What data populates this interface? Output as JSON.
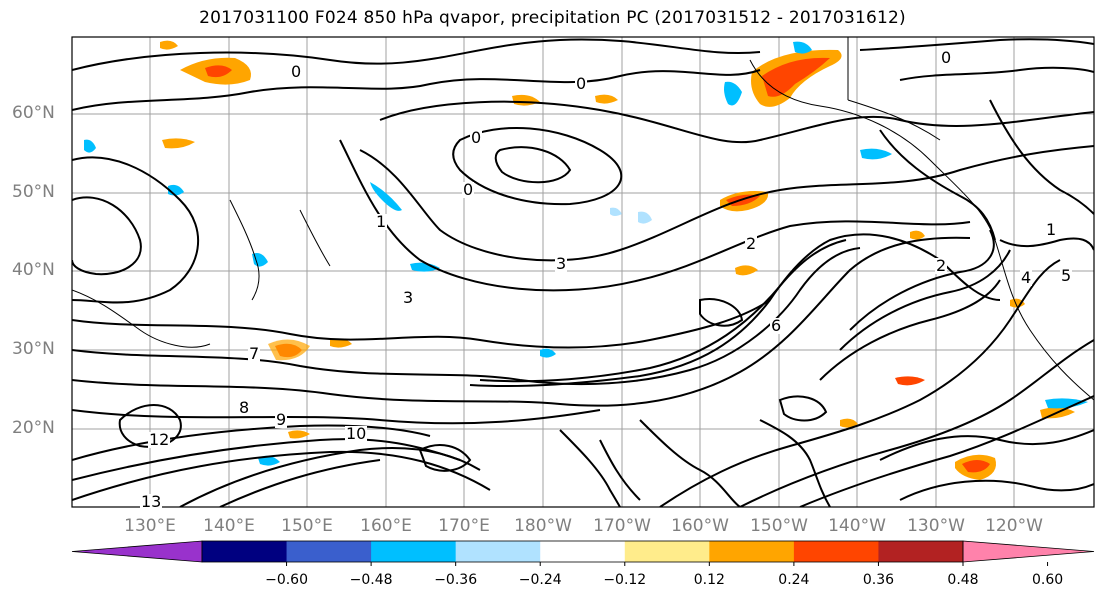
{
  "title": "2017031100 F024 850 hPa qvapor, precipitation PC (2017031512 - 2017031612)",
  "map": {
    "lat_labels": [
      "60°N",
      "50°N",
      "40°N",
      "30°N",
      "20°N"
    ],
    "lon_labels": [
      "130°E",
      "140°E",
      "150°E",
      "160°E",
      "170°E",
      "180°W",
      "170°W",
      "160°W",
      "150°W",
      "140°W",
      "130°W",
      "120°W"
    ],
    "gridline_color": "#a0a0a0",
    "contour_color": "#000000",
    "contour_labels": [
      "0",
      "0",
      "0",
      "0",
      "0",
      "1",
      "1",
      "2",
      "2",
      "3",
      "3",
      "4",
      "5",
      "6",
      "7",
      "8",
      "9",
      "10",
      "12",
      "13"
    ]
  },
  "colorbar": {
    "ticks": [
      "−0.60",
      "−0.48",
      "−0.36",
      "−0.24",
      "−0.12",
      "0.12",
      "0.24",
      "0.36",
      "0.48",
      "0.60"
    ],
    "colors": [
      "#9932cc",
      "#000080",
      "#3a5fcd",
      "#00bfff",
      "#b0e2ff",
      "#ffffff",
      "#ffec8b",
      "#ffa500",
      "#ff4500",
      "#b22222",
      "#ff82ab"
    ],
    "extend": "both"
  }
}
